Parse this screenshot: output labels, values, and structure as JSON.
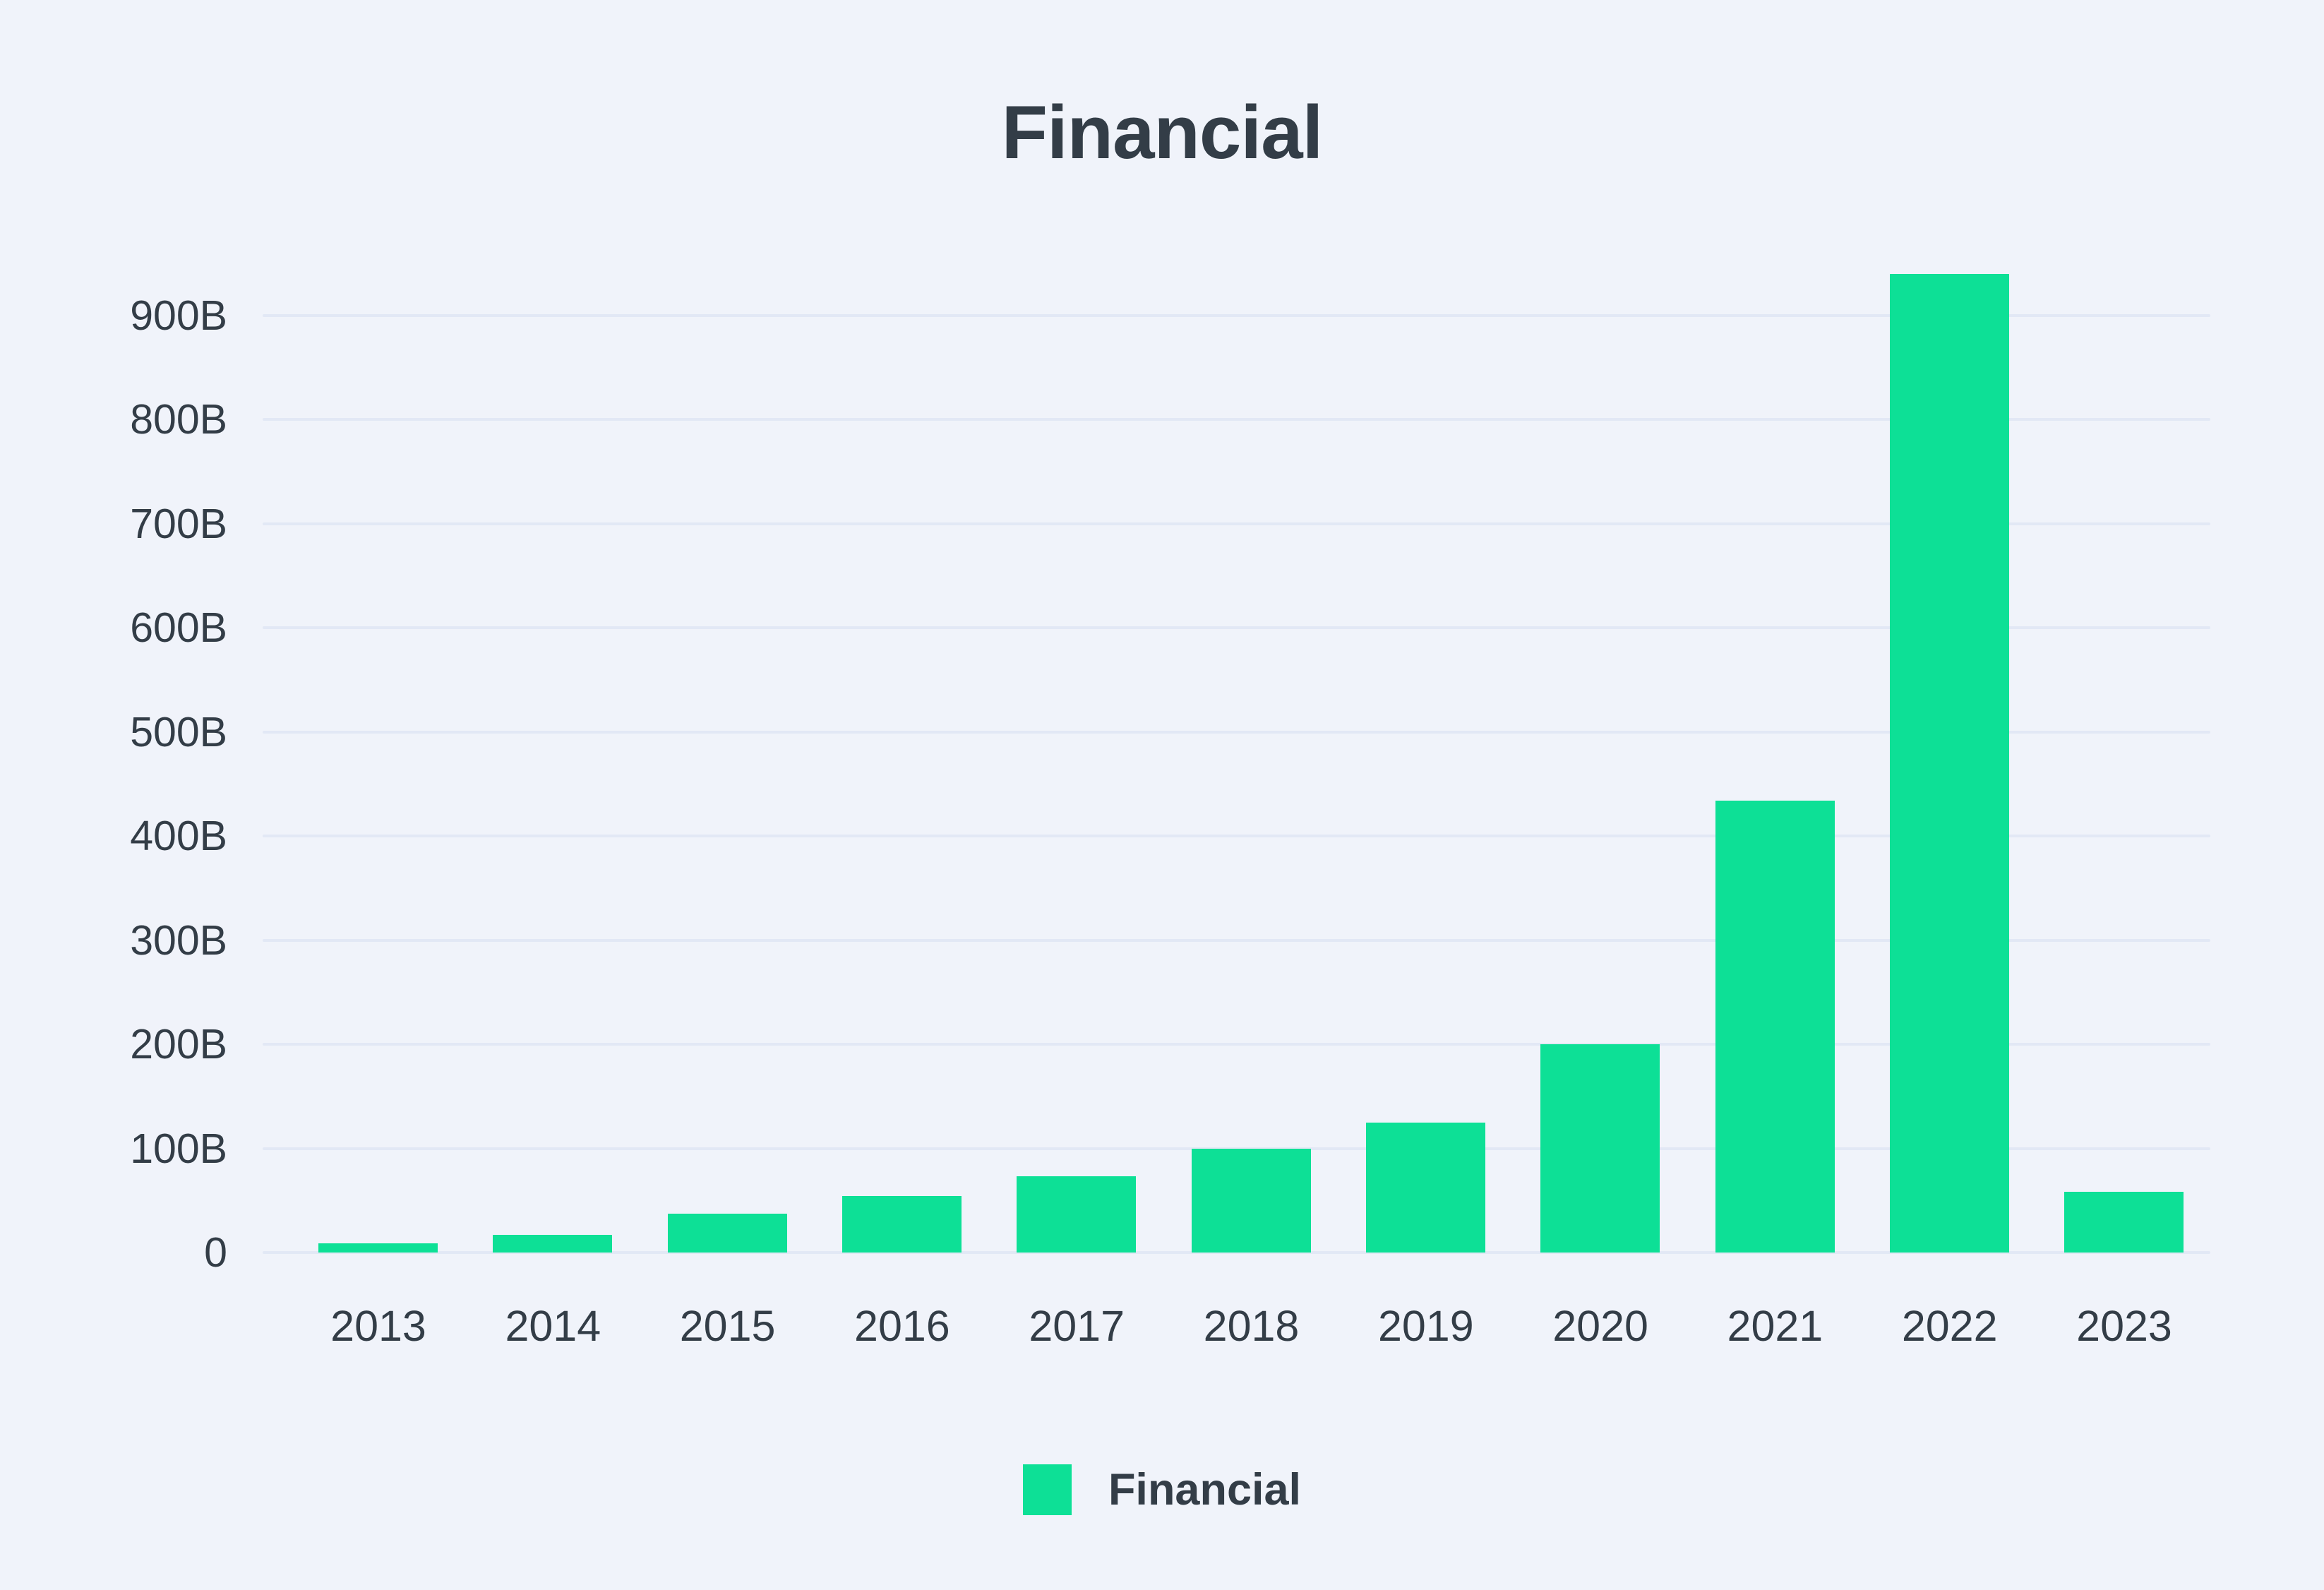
{
  "page": {
    "background": "#f0f3fa",
    "text_color": "#333d47"
  },
  "title": {
    "text": "Financial"
  },
  "legend": {
    "position": "bottom",
    "items": [
      {
        "label": "Financial",
        "color": "#0de096"
      }
    ]
  },
  "chart_data": {
    "type": "bar",
    "title": "Financial",
    "categories": [
      "2013",
      "2014",
      "2015",
      "2016",
      "2017",
      "2018",
      "2019",
      "2020",
      "2021",
      "2022",
      "2023"
    ],
    "series": [
      {
        "name": "Financial",
        "color": "#0de096",
        "values": [
          9,
          17,
          37,
          54,
          73,
          100,
          125,
          200,
          434,
          940,
          58
        ]
      }
    ],
    "unit": "B",
    "xlabel": "",
    "ylabel": "",
    "ylim": [
      0,
      900
    ],
    "ytick_step": 100,
    "yticks": [
      {
        "value": 0,
        "label": "0"
      },
      {
        "value": 100,
        "label": "100B"
      },
      {
        "value": 200,
        "label": "200B"
      },
      {
        "value": 300,
        "label": "300B"
      },
      {
        "value": 400,
        "label": "400B"
      },
      {
        "value": 500,
        "label": "500B"
      },
      {
        "value": 600,
        "label": "600B"
      },
      {
        "value": 700,
        "label": "700B"
      },
      {
        "value": 800,
        "label": "800B"
      },
      {
        "value": 900,
        "label": "900B"
      }
    ],
    "grid": true,
    "gridline_color": "#e2e8f5",
    "legend_position": "bottom"
  }
}
